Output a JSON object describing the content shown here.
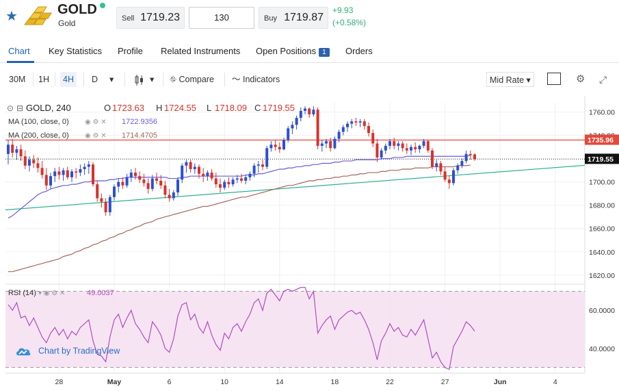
{
  "header": {
    "title": "GOLD",
    "subtitle": "Gold",
    "sell_label": "Sell",
    "sell_price": "1719.23",
    "quantity": "130",
    "buy_label": "Buy",
    "buy_price": "1719.87",
    "change_abs": "+9.93",
    "change_pct": "(+0.58%)",
    "change_color": "#2fae79"
  },
  "tabs": [
    {
      "label": "Chart",
      "active": true
    },
    {
      "label": "Key Statistics"
    },
    {
      "label": "Profile"
    },
    {
      "label": "Related Instruments"
    },
    {
      "label": "Open Positions",
      "badge": "1"
    },
    {
      "label": "Orders"
    }
  ],
  "toolbar": {
    "intervals": [
      "30M",
      "1H",
      "4H",
      "D"
    ],
    "active_interval": "4H",
    "compare_label": "Compare",
    "indicators_label": "Indicators",
    "rate_label": "Mid Rate",
    "icons": [
      "chevron-down-icon",
      "candle-style-icon",
      "compare-icon",
      "indicators-icon",
      "snapshot-icon",
      "settings-icon",
      "fullscreen-icon"
    ]
  },
  "legend": {
    "symbol": "GOLD, 240",
    "o_label": "O",
    "o": "1723.63",
    "h_label": "H",
    "h": "1724.55",
    "l_label": "L",
    "l": "1718.09",
    "c_label": "C",
    "c": "1719.55",
    "ma100_label": "MA (100, close, 0)",
    "ma100_value": "1722.9356",
    "ma200_label": "MA (200, close, 0)",
    "ma200_value": "1714.4705",
    "rsi_label": "RSI (14)",
    "rsi_value": "49.0037"
  },
  "branding": {
    "label": "Chart by TradingView"
  },
  "chart_data": {
    "type": "candlestick",
    "price_axis": {
      "ticks": [
        "1760.00",
        "1740.00",
        "1720.00",
        "1700.00",
        "1680.00",
        "1660.00",
        "1640.00",
        "1620.00"
      ],
      "range": [
        1614,
        1768
      ]
    },
    "rsi_axis": {
      "ticks": [
        "60.0000",
        "40.0000"
      ],
      "range": [
        27,
        73
      ],
      "band": [
        30,
        70
      ]
    },
    "x_labels": [
      "28",
      "May",
      "6",
      "10",
      "14",
      "18",
      "22",
      "27",
      "Jun",
      "4"
    ],
    "price_markers": [
      {
        "value": 1735.96,
        "label": "1735.96",
        "color": "#e24a3b"
      },
      {
        "value": 1719.55,
        "label": "1719.55",
        "color": "#111111"
      }
    ],
    "candles": [
      {
        "o": 1724,
        "h": 1736,
        "l": 1715,
        "c": 1732
      },
      {
        "o": 1732,
        "h": 1737,
        "l": 1721,
        "c": 1725
      },
      {
        "o": 1725,
        "h": 1731,
        "l": 1719,
        "c": 1728
      },
      {
        "o": 1728,
        "h": 1732,
        "l": 1718,
        "c": 1722
      },
      {
        "o": 1722,
        "h": 1727,
        "l": 1711,
        "c": 1714
      },
      {
        "o": 1714,
        "h": 1722,
        "l": 1709,
        "c": 1719
      },
      {
        "o": 1719,
        "h": 1723,
        "l": 1712,
        "c": 1716
      },
      {
        "o": 1716,
        "h": 1721,
        "l": 1708,
        "c": 1712
      },
      {
        "o": 1712,
        "h": 1718,
        "l": 1703,
        "c": 1706
      },
      {
        "o": 1706,
        "h": 1712,
        "l": 1693,
        "c": 1697
      },
      {
        "o": 1697,
        "h": 1708,
        "l": 1694,
        "c": 1705
      },
      {
        "o": 1705,
        "h": 1712,
        "l": 1700,
        "c": 1709
      },
      {
        "o": 1709,
        "h": 1713,
        "l": 1702,
        "c": 1706
      },
      {
        "o": 1706,
        "h": 1712,
        "l": 1701,
        "c": 1710
      },
      {
        "o": 1710,
        "h": 1713,
        "l": 1702,
        "c": 1704
      },
      {
        "o": 1704,
        "h": 1711,
        "l": 1700,
        "c": 1709
      },
      {
        "o": 1709,
        "h": 1712,
        "l": 1703,
        "c": 1708
      },
      {
        "o": 1708,
        "h": 1715,
        "l": 1705,
        "c": 1711
      },
      {
        "o": 1711,
        "h": 1716,
        "l": 1706,
        "c": 1713
      },
      {
        "o": 1713,
        "h": 1718,
        "l": 1707,
        "c": 1715
      },
      {
        "o": 1715,
        "h": 1717,
        "l": 1696,
        "c": 1698
      },
      {
        "o": 1698,
        "h": 1701,
        "l": 1683,
        "c": 1686
      },
      {
        "o": 1686,
        "h": 1690,
        "l": 1678,
        "c": 1683
      },
      {
        "o": 1683,
        "h": 1686,
        "l": 1671,
        "c": 1674
      },
      {
        "o": 1674,
        "h": 1689,
        "l": 1671,
        "c": 1687
      },
      {
        "o": 1687,
        "h": 1698,
        "l": 1684,
        "c": 1696
      },
      {
        "o": 1696,
        "h": 1703,
        "l": 1691,
        "c": 1700
      },
      {
        "o": 1700,
        "h": 1704,
        "l": 1694,
        "c": 1697
      },
      {
        "o": 1697,
        "h": 1707,
        "l": 1695,
        "c": 1704
      },
      {
        "o": 1704,
        "h": 1711,
        "l": 1700,
        "c": 1708
      },
      {
        "o": 1708,
        "h": 1712,
        "l": 1702,
        "c": 1705
      },
      {
        "o": 1705,
        "h": 1709,
        "l": 1699,
        "c": 1702
      },
      {
        "o": 1702,
        "h": 1707,
        "l": 1696,
        "c": 1699
      },
      {
        "o": 1699,
        "h": 1703,
        "l": 1690,
        "c": 1694
      },
      {
        "o": 1694,
        "h": 1706,
        "l": 1692,
        "c": 1703
      },
      {
        "o": 1703,
        "h": 1708,
        "l": 1698,
        "c": 1701
      },
      {
        "o": 1701,
        "h": 1706,
        "l": 1694,
        "c": 1697
      },
      {
        "o": 1697,
        "h": 1701,
        "l": 1686,
        "c": 1689
      },
      {
        "o": 1689,
        "h": 1694,
        "l": 1683,
        "c": 1686
      },
      {
        "o": 1686,
        "h": 1693,
        "l": 1684,
        "c": 1691
      },
      {
        "o": 1691,
        "h": 1704,
        "l": 1688,
        "c": 1702
      },
      {
        "o": 1702,
        "h": 1716,
        "l": 1699,
        "c": 1714
      },
      {
        "o": 1714,
        "h": 1719,
        "l": 1708,
        "c": 1717
      },
      {
        "o": 1717,
        "h": 1719,
        "l": 1708,
        "c": 1711
      },
      {
        "o": 1711,
        "h": 1716,
        "l": 1707,
        "c": 1713
      },
      {
        "o": 1713,
        "h": 1715,
        "l": 1703,
        "c": 1707
      },
      {
        "o": 1707,
        "h": 1712,
        "l": 1700,
        "c": 1705
      },
      {
        "o": 1705,
        "h": 1710,
        "l": 1701,
        "c": 1708
      },
      {
        "o": 1708,
        "h": 1711,
        "l": 1701,
        "c": 1703
      },
      {
        "o": 1703,
        "h": 1708,
        "l": 1695,
        "c": 1698
      },
      {
        "o": 1698,
        "h": 1703,
        "l": 1691,
        "c": 1695
      },
      {
        "o": 1695,
        "h": 1702,
        "l": 1693,
        "c": 1700
      },
      {
        "o": 1700,
        "h": 1704,
        "l": 1695,
        "c": 1698
      },
      {
        "o": 1698,
        "h": 1704,
        "l": 1696,
        "c": 1702
      },
      {
        "o": 1702,
        "h": 1706,
        "l": 1699,
        "c": 1703
      },
      {
        "o": 1703,
        "h": 1707,
        "l": 1699,
        "c": 1701
      },
      {
        "o": 1701,
        "h": 1706,
        "l": 1698,
        "c": 1704
      },
      {
        "o": 1704,
        "h": 1709,
        "l": 1701,
        "c": 1707
      },
      {
        "o": 1707,
        "h": 1716,
        "l": 1704,
        "c": 1714
      },
      {
        "o": 1714,
        "h": 1718,
        "l": 1708,
        "c": 1715
      },
      {
        "o": 1715,
        "h": 1719,
        "l": 1710,
        "c": 1713
      },
      {
        "o": 1713,
        "h": 1731,
        "l": 1711,
        "c": 1729
      },
      {
        "o": 1729,
        "h": 1735,
        "l": 1726,
        "c": 1732
      },
      {
        "o": 1732,
        "h": 1736,
        "l": 1727,
        "c": 1730
      },
      {
        "o": 1730,
        "h": 1734,
        "l": 1725,
        "c": 1728
      },
      {
        "o": 1728,
        "h": 1738,
        "l": 1727,
        "c": 1736
      },
      {
        "o": 1736,
        "h": 1748,
        "l": 1734,
        "c": 1746
      },
      {
        "o": 1746,
        "h": 1752,
        "l": 1741,
        "c": 1749
      },
      {
        "o": 1749,
        "h": 1757,
        "l": 1745,
        "c": 1755
      },
      {
        "o": 1755,
        "h": 1764,
        "l": 1752,
        "c": 1761
      },
      {
        "o": 1761,
        "h": 1765,
        "l": 1758,
        "c": 1763
      },
      {
        "o": 1763,
        "h": 1764,
        "l": 1755,
        "c": 1758
      },
      {
        "o": 1758,
        "h": 1765,
        "l": 1756,
        "c": 1762
      },
      {
        "o": 1762,
        "h": 1764,
        "l": 1728,
        "c": 1731
      },
      {
        "o": 1731,
        "h": 1736,
        "l": 1726,
        "c": 1733
      },
      {
        "o": 1733,
        "h": 1737,
        "l": 1729,
        "c": 1735
      },
      {
        "o": 1735,
        "h": 1738,
        "l": 1726,
        "c": 1729
      },
      {
        "o": 1729,
        "h": 1739,
        "l": 1728,
        "c": 1737
      },
      {
        "o": 1737,
        "h": 1745,
        "l": 1734,
        "c": 1743
      },
      {
        "o": 1743,
        "h": 1749,
        "l": 1740,
        "c": 1747
      },
      {
        "o": 1747,
        "h": 1752,
        "l": 1743,
        "c": 1750
      },
      {
        "o": 1750,
        "h": 1754,
        "l": 1746,
        "c": 1752
      },
      {
        "o": 1752,
        "h": 1755,
        "l": 1748,
        "c": 1751
      },
      {
        "o": 1751,
        "h": 1754,
        "l": 1747,
        "c": 1752
      },
      {
        "o": 1752,
        "h": 1754,
        "l": 1745,
        "c": 1748
      },
      {
        "o": 1748,
        "h": 1751,
        "l": 1739,
        "c": 1742
      },
      {
        "o": 1742,
        "h": 1745,
        "l": 1730,
        "c": 1733
      },
      {
        "o": 1733,
        "h": 1737,
        "l": 1717,
        "c": 1721
      },
      {
        "o": 1721,
        "h": 1729,
        "l": 1719,
        "c": 1727
      },
      {
        "o": 1727,
        "h": 1733,
        "l": 1724,
        "c": 1731
      },
      {
        "o": 1731,
        "h": 1737,
        "l": 1728,
        "c": 1735
      },
      {
        "o": 1735,
        "h": 1738,
        "l": 1728,
        "c": 1731
      },
      {
        "o": 1731,
        "h": 1735,
        "l": 1727,
        "c": 1733
      },
      {
        "o": 1733,
        "h": 1735,
        "l": 1726,
        "c": 1729
      },
      {
        "o": 1729,
        "h": 1733,
        "l": 1724,
        "c": 1727
      },
      {
        "o": 1727,
        "h": 1732,
        "l": 1723,
        "c": 1730
      },
      {
        "o": 1730,
        "h": 1734,
        "l": 1725,
        "c": 1728
      },
      {
        "o": 1728,
        "h": 1732,
        "l": 1725,
        "c": 1731
      },
      {
        "o": 1731,
        "h": 1737,
        "l": 1729,
        "c": 1735
      },
      {
        "o": 1735,
        "h": 1736,
        "l": 1725,
        "c": 1727
      },
      {
        "o": 1727,
        "h": 1729,
        "l": 1711,
        "c": 1713
      },
      {
        "o": 1713,
        "h": 1719,
        "l": 1709,
        "c": 1716
      },
      {
        "o": 1716,
        "h": 1718,
        "l": 1706,
        "c": 1709
      },
      {
        "o": 1709,
        "h": 1713,
        "l": 1700,
        "c": 1702
      },
      {
        "o": 1702,
        "h": 1705,
        "l": 1694,
        "c": 1699
      },
      {
        "o": 1699,
        "h": 1712,
        "l": 1697,
        "c": 1710
      },
      {
        "o": 1710,
        "h": 1716,
        "l": 1707,
        "c": 1714
      },
      {
        "o": 1714,
        "h": 1720,
        "l": 1712,
        "c": 1718
      },
      {
        "o": 1718,
        "h": 1727,
        "l": 1716,
        "c": 1724
      },
      {
        "o": 1724,
        "h": 1727,
        "l": 1719,
        "c": 1723
      },
      {
        "o": 1723.63,
        "h": 1724.55,
        "l": 1718.09,
        "c": 1719.55
      }
    ],
    "ma100": [
      1669,
      1671,
      1674,
      1677,
      1680,
      1683,
      1686,
      1689,
      1691,
      1692,
      1694,
      1695,
      1696,
      1697,
      1697,
      1698,
      1698,
      1699,
      1700,
      1700,
      1701,
      1701,
      1701,
      1701,
      1702,
      1702,
      1703,
      1703,
      1704,
      1704,
      1704,
      1704,
      1704,
      1704,
      1704,
      1704,
      1704,
      1704,
      1703,
      1703,
      1703,
      1704,
      1704,
      1705,
      1705,
      1705,
      1705,
      1705,
      1705,
      1705,
      1705,
      1705,
      1705,
      1705,
      1705,
      1705,
      1706,
      1706,
      1706,
      1707,
      1707,
      1708,
      1709,
      1710,
      1711,
      1711,
      1712,
      1712,
      1713,
      1713,
      1714,
      1714,
      1715,
      1715,
      1716,
      1716,
      1716,
      1717,
      1717,
      1718,
      1718,
      1718,
      1719,
      1719,
      1719,
      1719,
      1719,
      1719,
      1720,
      1720,
      1720,
      1721,
      1721,
      1721,
      1722,
      1722,
      1722,
      1722,
      1722,
      1722,
      1722,
      1722,
      1722,
      1722,
      1722,
      1722,
      1722,
      1722,
      1722,
      1722.94
    ],
    "ma200": [
      1623,
      1623,
      1624,
      1625,
      1626,
      1627,
      1628,
      1629,
      1630,
      1631,
      1632,
      1633,
      1634,
      1636,
      1637,
      1638,
      1640,
      1641,
      1643,
      1644,
      1646,
      1647,
      1649,
      1650,
      1652,
      1653,
      1655,
      1656,
      1658,
      1659,
      1661,
      1662,
      1664,
      1665,
      1666,
      1668,
      1669,
      1670,
      1671,
      1672,
      1673,
      1674,
      1675,
      1676,
      1677,
      1678,
      1679,
      1679,
      1680,
      1681,
      1682,
      1683,
      1684,
      1685,
      1686,
      1687,
      1687,
      1688,
      1689,
      1690,
      1691,
      1692,
      1693,
      1694,
      1695,
      1696,
      1697,
      1697,
      1698,
      1699,
      1700,
      1701,
      1701,
      1702,
      1702,
      1703,
      1703,
      1704,
      1704,
      1705,
      1705,
      1706,
      1706,
      1707,
      1707,
      1708,
      1708,
      1708,
      1709,
      1709,
      1710,
      1710,
      1710,
      1711,
      1711,
      1711,
      1712,
      1712,
      1712,
      1712,
      1713,
      1713,
      1713,
      1713,
      1713,
      1713,
      1714,
      1714,
      1714,
      1714.47
    ],
    "trendlines": [
      {
        "from": [
          0,
          1676
        ],
        "to": [
          110,
          1707
        ],
        "color": "#2fae91"
      },
      {
        "from": [
          0,
          1735.96
        ],
        "to": [
          110,
          1735.96
        ],
        "color": "#e24a3b"
      }
    ],
    "rsi": [
      63,
      60,
      64,
      56,
      57,
      52,
      56,
      51,
      46,
      43,
      48,
      51,
      47,
      50,
      45,
      49,
      47,
      51,
      53,
      55,
      44,
      37,
      36,
      33,
      46,
      55,
      58,
      51,
      56,
      60,
      53,
      50,
      46,
      43,
      54,
      51,
      47,
      40,
      38,
      45,
      57,
      63,
      64,
      55,
      58,
      51,
      48,
      54,
      47,
      42,
      39,
      48,
      45,
      51,
      53,
      49,
      54,
      58,
      64,
      66,
      60,
      69,
      71,
      68,
      65,
      70,
      71,
      70,
      71,
      72,
      72,
      66,
      70,
      48,
      52,
      55,
      57,
      50,
      55,
      57,
      59,
      60,
      58,
      59,
      55,
      50,
      43,
      34,
      44,
      48,
      53,
      49,
      51,
      47,
      46,
      50,
      47,
      51,
      55,
      45,
      35,
      38,
      33,
      30,
      29,
      41,
      45,
      49,
      54,
      52,
      49
    ]
  }
}
